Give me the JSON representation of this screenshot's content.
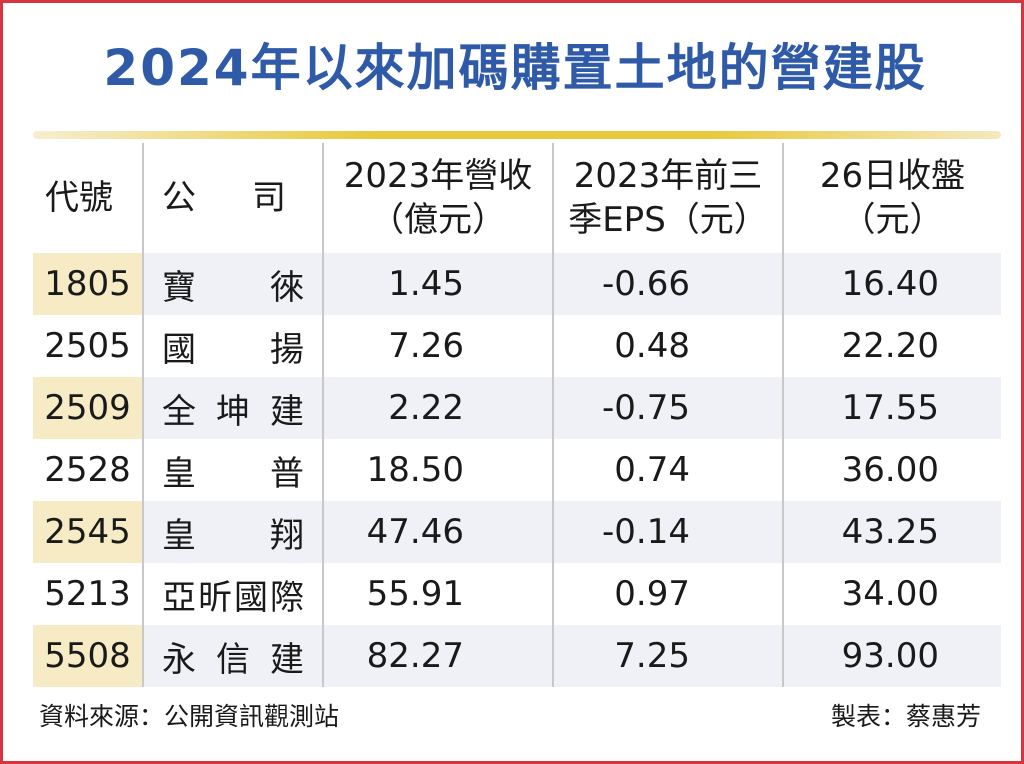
{
  "title": "2024年以來加碼購置土地的營建股",
  "headers": {
    "code": "代號",
    "company": [
      "公",
      "司"
    ],
    "revenue": [
      "2023年營收",
      "（億元）"
    ],
    "eps": [
      "2023年前三",
      "季EPS（元）"
    ],
    "close": [
      "26日收盤",
      "（元）"
    ]
  },
  "rows": [
    {
      "code": "1805",
      "name": [
        "寶",
        "徠"
      ],
      "revenue": "1.45",
      "eps": "-0.66",
      "close": "16.40"
    },
    {
      "code": "2505",
      "name": [
        "國",
        "揚"
      ],
      "revenue": "7.26",
      "eps": "0.48",
      "close": "22.20"
    },
    {
      "code": "2509",
      "name": [
        "全",
        "坤",
        "建"
      ],
      "revenue": "2.22",
      "eps": "-0.75",
      "close": "17.55"
    },
    {
      "code": "2528",
      "name": [
        "皇",
        "普"
      ],
      "revenue": "18.50",
      "eps": "0.74",
      "close": "36.00"
    },
    {
      "code": "2545",
      "name": [
        "皇",
        "翔"
      ],
      "revenue": "47.46",
      "eps": "-0.14",
      "close": "43.25"
    },
    {
      "code": "5213",
      "name": [
        "亞",
        "昕",
        "國",
        "際"
      ],
      "revenue": "55.91",
      "eps": "0.97",
      "close": "34.00"
    },
    {
      "code": "5508",
      "name": [
        "永",
        "信",
        "建"
      ],
      "revenue": "82.27",
      "eps": "7.25",
      "close": "93.00"
    }
  ],
  "footer": {
    "source": "資料來源：公開資訊觀測站",
    "author": "製表：蔡惠芳"
  },
  "colors": {
    "title": "#2e5aa8",
    "border": "#d8343f",
    "rule": "#e8c93b",
    "row_alt": "#f0f1f6",
    "code_alt": "#f6ebc4"
  }
}
